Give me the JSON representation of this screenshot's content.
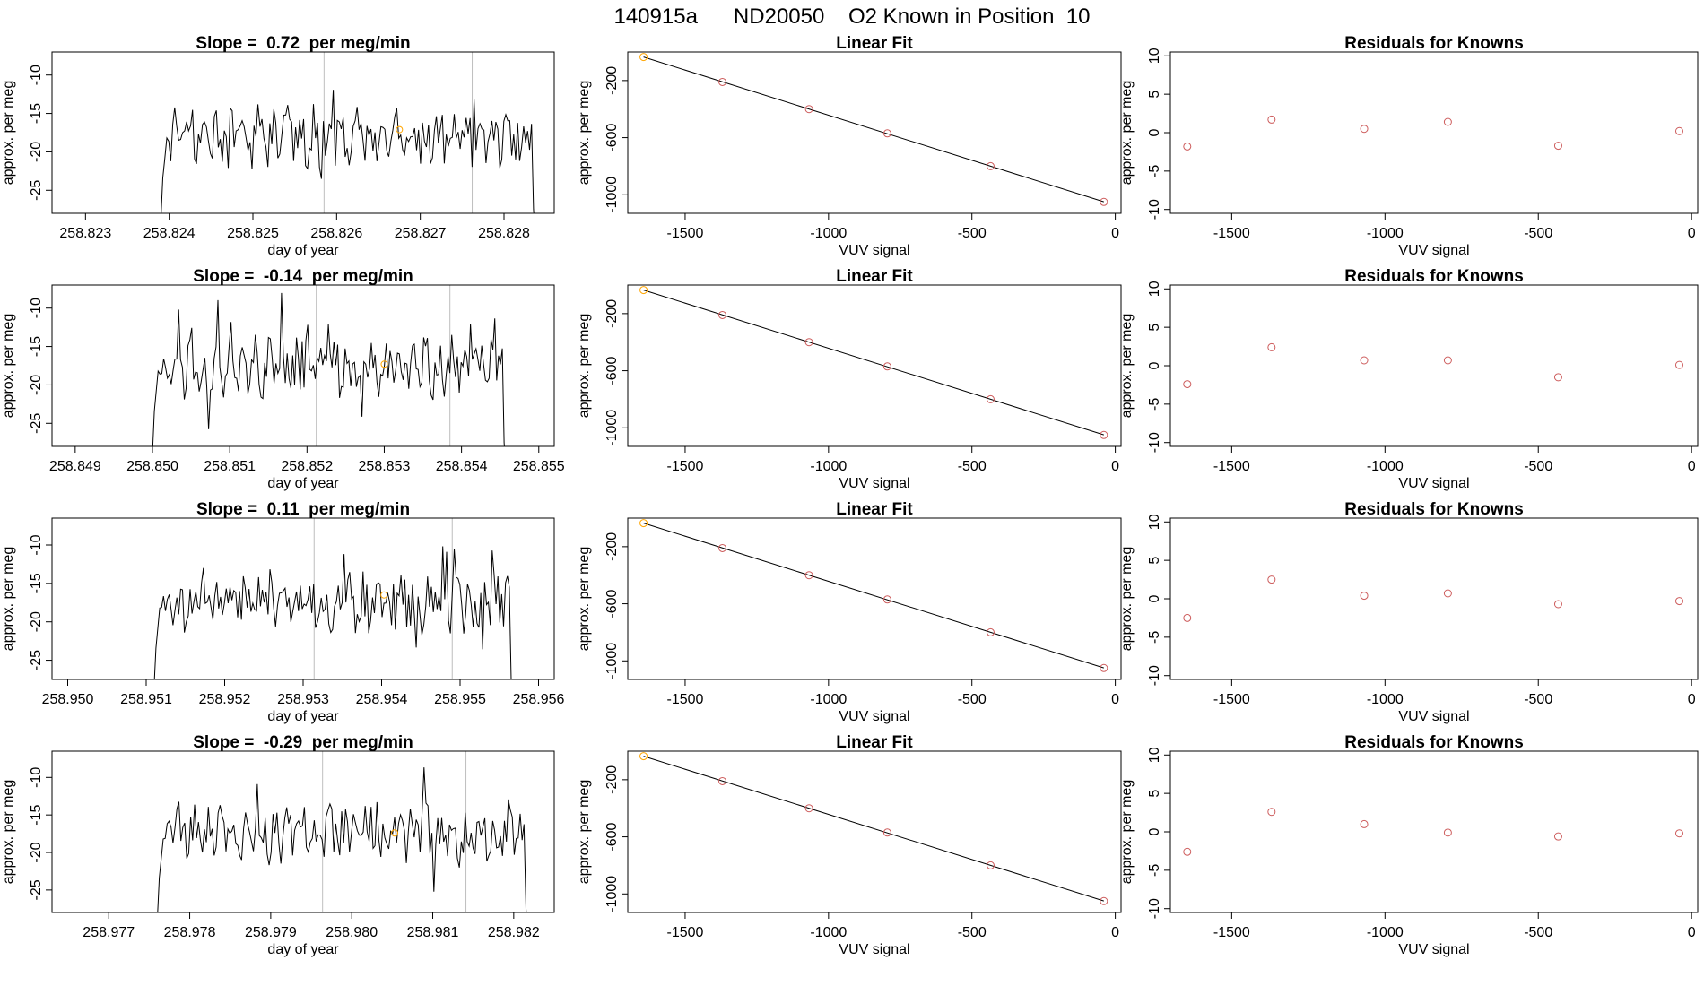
{
  "figure": {
    "suptitle": "140915a      ND20050    O2 Known in Position  10",
    "background": "#ffffff",
    "colors": {
      "line": "#000000",
      "marker_known": "#cd5c5c",
      "marker_highlight": "#ffa500",
      "vline": "#bebebe"
    }
  },
  "chart_data": [
    {
      "type": "line",
      "panel": "time-1",
      "title": "Slope =  0.72  per meg/min",
      "xlabel": "day of year",
      "ylabel": "approx. per meg",
      "xlim": [
        258.8226,
        258.8286
      ],
      "ylim": [
        -28,
        -7
      ],
      "xticks": [
        "258.823",
        "258.824",
        "258.825",
        "258.826",
        "258.827",
        "258.828"
      ],
      "yticks": [
        "-10",
        "-15",
        "-20",
        "-25"
      ],
      "start": 258.8239,
      "end": 258.8284,
      "base": -18,
      "seed": 1,
      "vlines": [
        258.82585,
        258.82762
      ],
      "marker": [
        258.82675,
        -17.1
      ]
    },
    {
      "type": "line",
      "panel": "time-2",
      "title": "Slope =  -0.14  per meg/min",
      "xlabel": "day of year",
      "ylabel": "approx. per meg",
      "xlim": [
        258.8487,
        258.8552
      ],
      "ylim": [
        -28,
        -7
      ],
      "xticks": [
        "258.849",
        "258.850",
        "258.851",
        "258.852",
        "258.853",
        "258.854",
        "258.855"
      ],
      "yticks": [
        "-10",
        "-15",
        "-20",
        "-25"
      ],
      "start": 258.85,
      "end": 258.8546,
      "base": -17.5,
      "seed": 2,
      "vlines": [
        258.85212,
        258.85385
      ],
      "marker": [
        258.853,
        -17.3
      ]
    },
    {
      "type": "line",
      "panel": "time-3",
      "title": "Slope =  0.11  per meg/min",
      "xlabel": "day of year",
      "ylabel": "approx. per meg",
      "xlim": [
        258.9498,
        258.9562
      ],
      "ylim": [
        -27.5,
        -6.5
      ],
      "xticks": [
        "258.950",
        "258.951",
        "258.952",
        "258.953",
        "258.954",
        "258.955",
        "258.956"
      ],
      "yticks": [
        "-10",
        "-15",
        "-20",
        "-25"
      ],
      "start": 258.9511,
      "end": 258.9557,
      "base": -17.5,
      "seed": 3,
      "vlines": [
        258.95314,
        258.9549
      ],
      "marker": [
        258.95403,
        -16.5
      ]
    },
    {
      "type": "line",
      "panel": "time-4",
      "title": "Slope =  -0.29  per meg/min",
      "xlabel": "day of year",
      "ylabel": "approx. per meg",
      "xlim": [
        258.9763,
        258.9825
      ],
      "ylim": [
        -28,
        -6.5
      ],
      "xticks": [
        "258.977",
        "258.978",
        "258.979",
        "258.980",
        "258.981",
        "258.982"
      ],
      "yticks": [
        "-10",
        "-15",
        "-20",
        "-25"
      ],
      "start": 258.9776,
      "end": 258.9822,
      "base": -17.5,
      "seed": 4,
      "vlines": [
        258.97964,
        258.98141
      ],
      "marker": [
        258.98053,
        -17.4
      ]
    },
    {
      "type": "scatter",
      "panel": "fit-1",
      "title": "Linear Fit",
      "xlabel": "VUV signal",
      "ylabel": "approx. per meg",
      "xlim": [
        -1700,
        20
      ],
      "ylim": [
        -1130,
        0
      ],
      "xticks": [
        -1500,
        -1000,
        -500,
        0
      ],
      "yticks": [
        -200,
        -600,
        -1000
      ],
      "x": [
        -1645,
        -1370,
        -1068,
        -795,
        -435,
        -40
      ],
      "y": [
        -35,
        -210,
        -400,
        -570,
        -800,
        -1050
      ]
    },
    {
      "type": "scatter",
      "panel": "fit-2",
      "title": "Linear Fit",
      "xlabel": "VUV signal",
      "ylabel": "approx. per meg",
      "xlim": [
        -1700,
        20
      ],
      "ylim": [
        -1130,
        0
      ],
      "xticks": [
        -1500,
        -1000,
        -500,
        0
      ],
      "yticks": [
        -200,
        -600,
        -1000
      ],
      "x": [
        -1645,
        -1370,
        -1068,
        -795,
        -435,
        -40
      ],
      "y": [
        -35,
        -210,
        -400,
        -570,
        -800,
        -1050
      ]
    },
    {
      "type": "scatter",
      "panel": "fit-3",
      "title": "Linear Fit",
      "xlabel": "VUV signal",
      "ylabel": "approx. per meg",
      "xlim": [
        -1700,
        20
      ],
      "ylim": [
        -1130,
        0
      ],
      "xticks": [
        -1500,
        -1000,
        -500,
        0
      ],
      "yticks": [
        -200,
        -600,
        -1000
      ],
      "x": [
        -1645,
        -1370,
        -1068,
        -795,
        -435,
        -40
      ],
      "y": [
        -35,
        -210,
        -400,
        -570,
        -800,
        -1050
      ]
    },
    {
      "type": "scatter",
      "panel": "fit-4",
      "title": "Linear Fit",
      "xlabel": "VUV signal",
      "ylabel": "approx. per meg",
      "xlim": [
        -1700,
        20
      ],
      "ylim": [
        -1130,
        0
      ],
      "xticks": [
        -1500,
        -1000,
        -500,
        0
      ],
      "yticks": [
        -200,
        -600,
        -1000
      ],
      "x": [
        -1645,
        -1370,
        -1068,
        -795,
        -435,
        -40
      ],
      "y": [
        -35,
        -210,
        -400,
        -570,
        -800,
        -1050
      ]
    },
    {
      "type": "scatter",
      "panel": "resid-1",
      "title": "Residuals for Knowns",
      "xlabel": "VUV signal",
      "ylabel": "approx. per meg",
      "xlim": [
        -1700,
        20
      ],
      "ylim": [
        -10.5,
        10.5
      ],
      "xticks": [
        -1500,
        -1000,
        -500,
        0
      ],
      "yticks": [
        10,
        5,
        0,
        -5,
        -10
      ],
      "x": [
        -1645,
        -1370,
        -1068,
        -795,
        -435,
        -40
      ],
      "y": [
        -1.8,
        1.7,
        0.5,
        1.4,
        -1.7,
        0.2
      ]
    },
    {
      "type": "scatter",
      "panel": "resid-2",
      "title": "Residuals for Knowns",
      "xlabel": "VUV signal",
      "ylabel": "approx. per meg",
      "xlim": [
        -1700,
        20
      ],
      "ylim": [
        -10.5,
        10.5
      ],
      "xticks": [
        -1500,
        -1000,
        -500,
        0
      ],
      "yticks": [
        10,
        5,
        0,
        -5,
        -10
      ],
      "x": [
        -1645,
        -1370,
        -1068,
        -795,
        -435,
        -40
      ],
      "y": [
        -2.4,
        2.4,
        0.7,
        0.7,
        -1.5,
        0.1
      ]
    },
    {
      "type": "scatter",
      "panel": "resid-3",
      "title": "Residuals for Knowns",
      "xlabel": "VUV signal",
      "ylabel": "approx. per meg",
      "xlim": [
        -1700,
        20
      ],
      "ylim": [
        -10.5,
        10.5
      ],
      "xticks": [
        -1500,
        -1000,
        -500,
        0
      ],
      "yticks": [
        10,
        5,
        0,
        -5,
        -10
      ],
      "x": [
        -1645,
        -1370,
        -1068,
        -795,
        -435,
        -40
      ],
      "y": [
        -2.5,
        2.5,
        0.4,
        0.7,
        -0.7,
        -0.3
      ]
    },
    {
      "type": "scatter",
      "panel": "resid-4",
      "title": "Residuals for Knowns",
      "xlabel": "VUV signal",
      "ylabel": "approx. per meg",
      "xlim": [
        -1700,
        20
      ],
      "ylim": [
        -10.5,
        10.5
      ],
      "xticks": [
        -1500,
        -1000,
        -500,
        0
      ],
      "yticks": [
        10,
        5,
        0,
        -5,
        -10
      ],
      "x": [
        -1645,
        -1370,
        -1068,
        -795,
        -435,
        -40
      ],
      "y": [
        -2.6,
        2.6,
        1.0,
        -0.1,
        -0.6,
        -0.2
      ]
    }
  ]
}
